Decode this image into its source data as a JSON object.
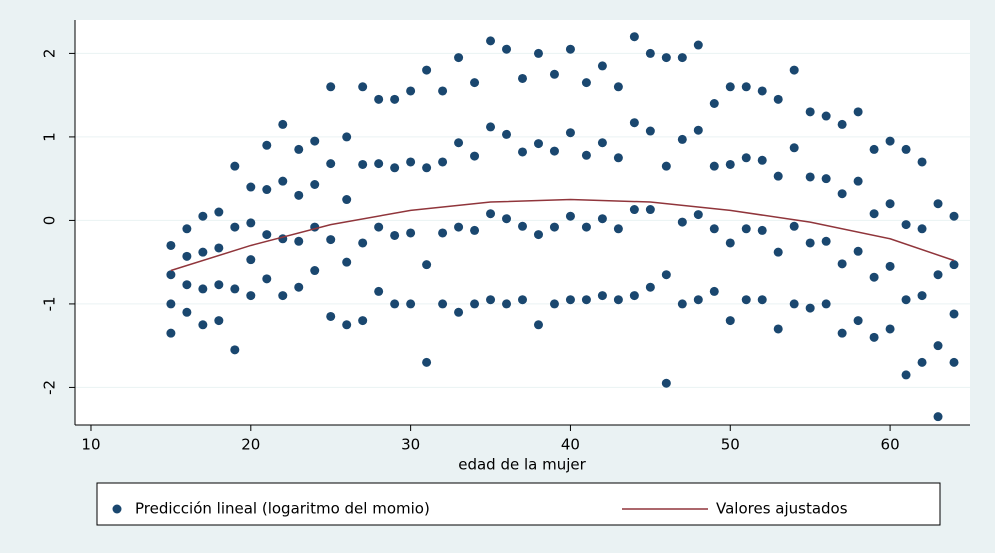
{
  "chart_data": {
    "type": "scatter",
    "xlabel": "edad de la mujer",
    "xlim": [
      9,
      65
    ],
    "xticks": [
      10,
      20,
      30,
      40,
      50,
      60
    ],
    "ylim": [
      -2.45,
      2.4
    ],
    "yticks": [
      -2,
      -1,
      0,
      1,
      2
    ],
    "grid": true,
    "series": [
      {
        "name": "Predicción lineal (logaritmo del momio)",
        "color": "#1a476f",
        "kind": "scatter",
        "x": [
          15,
          15,
          15,
          15,
          16,
          16,
          16,
          16,
          17,
          17,
          17,
          17,
          18,
          18,
          18,
          18,
          19,
          19,
          19,
          19,
          20,
          20,
          20,
          20,
          21,
          21,
          21,
          21,
          22,
          22,
          22,
          22,
          23,
          23,
          23,
          23,
          24,
          24,
          24,
          24,
          25,
          25,
          25,
          25,
          26,
          26,
          26,
          26,
          27,
          27,
          27,
          27,
          28,
          28,
          28,
          28,
          29,
          29,
          29,
          29,
          30,
          30,
          30,
          30,
          31,
          31,
          31,
          31,
          32,
          32,
          32,
          32,
          33,
          33,
          33,
          33,
          34,
          34,
          34,
          34,
          35,
          35,
          35,
          35,
          36,
          36,
          36,
          36,
          37,
          37,
          37,
          37,
          38,
          38,
          38,
          38,
          39,
          39,
          39,
          39,
          40,
          40,
          40,
          40,
          41,
          41,
          41,
          41,
          42,
          42,
          42,
          42,
          43,
          43,
          43,
          43,
          44,
          44,
          44,
          44,
          45,
          45,
          45,
          45,
          46,
          46,
          46,
          46,
          47,
          47,
          47,
          47,
          48,
          48,
          48,
          48,
          49,
          49,
          49,
          49,
          50,
          50,
          50,
          50,
          51,
          51,
          51,
          51,
          52,
          52,
          52,
          52,
          53,
          53,
          53,
          53,
          54,
          54,
          54,
          54,
          55,
          55,
          55,
          55,
          56,
          56,
          56,
          56,
          57,
          57,
          57,
          57,
          58,
          58,
          58,
          58,
          59,
          59,
          59,
          59,
          60,
          60,
          60,
          60,
          61,
          61,
          61,
          61,
          62,
          62,
          62,
          62,
          63,
          63,
          63,
          63,
          64,
          64,
          64,
          64
        ],
        "values": [
          -0.3,
          -0.65,
          -1.0,
          -1.35,
          -0.1,
          -0.43,
          -0.77,
          -1.1,
          0.05,
          -0.38,
          -0.82,
          -1.25,
          0.1,
          -0.33,
          -0.77,
          -1.2,
          0.65,
          -0.08,
          -0.82,
          -1.55,
          0.4,
          -0.03,
          -0.47,
          -0.9,
          0.9,
          0.37,
          -0.17,
          -0.7,
          1.15,
          0.47,
          -0.22,
          -0.9,
          0.85,
          0.3,
          -0.25,
          -0.8,
          0.95,
          0.43,
          -0.08,
          -0.6,
          1.6,
          0.68,
          -0.23,
          -1.15,
          1.0,
          0.25,
          -0.5,
          -1.25,
          1.6,
          0.67,
          -0.27,
          -1.2,
          1.45,
          0.68,
          -0.08,
          -0.85,
          1.45,
          0.63,
          -0.18,
          -1.0,
          1.55,
          0.7,
          -0.15,
          -1.0,
          1.8,
          0.63,
          -0.53,
          -1.7,
          1.55,
          0.7,
          -0.15,
          -1.0,
          1.95,
          0.93,
          -0.08,
          -1.1,
          1.65,
          0.77,
          -0.12,
          -1.0,
          2.15,
          1.12,
          0.08,
          -0.95,
          2.05,
          1.03,
          0.02,
          -1.0,
          1.7,
          0.82,
          -0.07,
          -0.95,
          2.0,
          0.92,
          -0.17,
          -1.25,
          1.75,
          0.83,
          -0.08,
          -1.0,
          2.05,
          1.05,
          0.05,
          -0.95,
          1.65,
          0.78,
          -0.08,
          -0.95,
          1.85,
          0.93,
          0.02,
          -0.9,
          1.6,
          0.75,
          -0.1,
          -0.95,
          2.2,
          1.17,
          0.13,
          -0.9,
          2.0,
          1.07,
          0.13,
          -0.8,
          1.95,
          0.65,
          -0.65,
          -1.95,
          1.95,
          0.97,
          -0.02,
          -1.0,
          2.1,
          1.08,
          0.07,
          -0.95,
          1.4,
          0.65,
          -0.1,
          -0.85,
          1.6,
          0.67,
          -0.27,
          -1.2,
          1.6,
          0.75,
          -0.1,
          -0.95,
          1.55,
          0.72,
          -0.12,
          -0.95,
          1.45,
          0.53,
          -0.38,
          -1.3,
          1.8,
          0.87,
          -0.07,
          -1.0,
          1.3,
          0.52,
          -0.27,
          -1.05,
          1.25,
          0.5,
          -0.25,
          -1.0,
          1.15,
          0.32,
          -0.52,
          -1.35,
          1.3,
          0.47,
          -0.37,
          -1.2,
          0.85,
          0.08,
          -0.68,
          -1.4,
          0.95,
          0.2,
          -0.55,
          -1.3,
          0.85,
          -0.05,
          -0.95,
          -1.85,
          0.7,
          -0.1,
          -0.9,
          -1.7,
          0.2,
          -0.65,
          -1.5,
          -2.35,
          0.05,
          -0.53,
          -1.12,
          -1.7
        ]
      },
      {
        "name": "Valores ajustados",
        "color": "#90353b",
        "kind": "line",
        "x": [
          15,
          20,
          25,
          30,
          35,
          40,
          45,
          50,
          55,
          60,
          64
        ],
        "values": [
          -0.6,
          -0.3,
          -0.05,
          0.12,
          0.22,
          0.25,
          0.22,
          0.12,
          -0.02,
          -0.22,
          -0.48
        ]
      }
    ]
  }
}
